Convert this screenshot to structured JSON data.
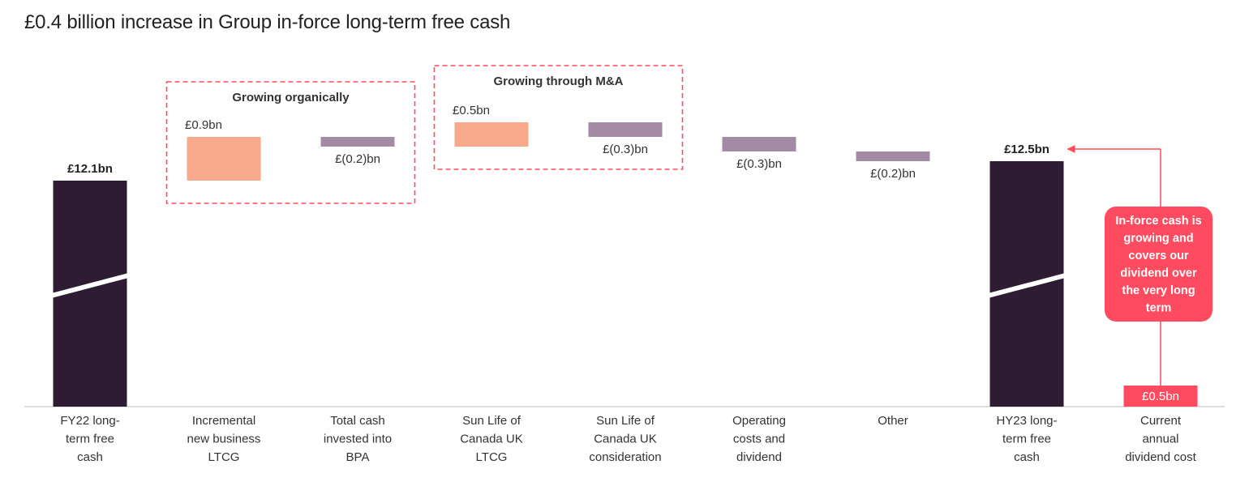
{
  "title": "£0.4 billion increase in Group in-force long-term free cash",
  "colors": {
    "total": "#2e1c33",
    "increase": "#f9a98b",
    "decrease": "#a28ba3",
    "accent": "#ff4b5f",
    "callout": "#ff4b5f"
  },
  "groups": [
    {
      "label": "Growing organically",
      "from": 1,
      "to": 2
    },
    {
      "label": "Growing through M&A",
      "from": 3,
      "to": 4
    }
  ],
  "callout": {
    "lines": [
      "In-force cash is",
      "growing and",
      "covers our",
      "dividend over",
      "the very long",
      "term"
    ]
  },
  "chart_data": {
    "type": "bar",
    "subtype": "waterfall",
    "axis_break": true,
    "categories": [
      [
        "FY22 long-",
        "term free",
        "cash"
      ],
      [
        "Incremental",
        "new business",
        "LTCG"
      ],
      [
        "Total cash",
        "invested into",
        "BPA"
      ],
      [
        "Sun Life of",
        "Canada UK",
        "LTCG"
      ],
      [
        "Sun Life of",
        "Canada UK",
        "consideration"
      ],
      [
        "Operating",
        "costs and",
        "dividend"
      ],
      [
        "Other"
      ],
      [
        "HY23 long-",
        "term free",
        "cash"
      ],
      [
        "Current",
        "annual",
        "dividend cost"
      ]
    ],
    "values": [
      12.1,
      0.9,
      -0.2,
      0.5,
      -0.3,
      -0.3,
      -0.2,
      12.5,
      0.5
    ],
    "kinds": [
      "total",
      "increase",
      "decrease",
      "increase",
      "decrease",
      "decrease",
      "decrease",
      "total",
      "cost"
    ],
    "labels": [
      "£12.1bn",
      "£0.9bn",
      "£(0.2)bn",
      "£0.5bn",
      "£(0.3)bn",
      "£(0.3)bn",
      "£(0.2)bn",
      "£12.5bn",
      "£0.5bn"
    ],
    "unit": "£bn"
  }
}
